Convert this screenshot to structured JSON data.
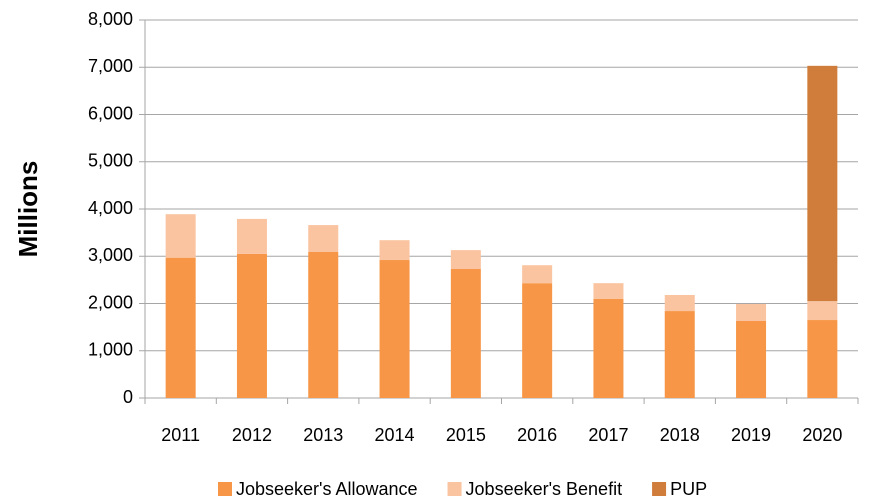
{
  "chart_data": {
    "type": "stacked_bar",
    "ylabel": "Millions",
    "categories": [
      "2011",
      "2012",
      "2013",
      "2014",
      "2015",
      "2016",
      "2017",
      "2018",
      "2019",
      "2020"
    ],
    "series": [
      {
        "name": "Jobseeker's Allowance",
        "color": "#f79646",
        "values": [
          2970,
          3050,
          3090,
          2920,
          2730,
          2430,
          2100,
          1840,
          1630,
          1650
        ]
      },
      {
        "name": "Jobseeker's Benefit",
        "color": "#fac4a0",
        "values": [
          920,
          740,
          570,
          420,
          400,
          380,
          330,
          340,
          360,
          400
        ]
      },
      {
        "name": "PUP",
        "color": "#d07d3b",
        "values": [
          null,
          null,
          null,
          null,
          null,
          null,
          null,
          null,
          null,
          4980
        ]
      }
    ],
    "ylim": [
      0,
      8000
    ],
    "yticks": [
      0,
      {
        "value": 1000,
        "label": "1,000"
      },
      {
        "value": 2000,
        "label": "2,000"
      },
      {
        "value": 3000,
        "label": "3,000"
      },
      {
        "value": 4000,
        "label": "4,000"
      },
      {
        "value": 5000,
        "label": "5,000"
      },
      {
        "value": 6000,
        "label": "6,000"
      },
      {
        "value": 7000,
        "label": "7,000"
      },
      {
        "value": 8000,
        "label": "8,000"
      }
    ],
    "grid": true,
    "legend": "bottom"
  }
}
